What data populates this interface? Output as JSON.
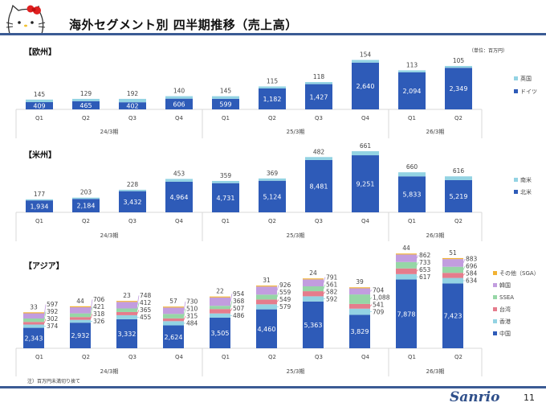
{
  "header": {
    "title": "海外セグメント別 四半期推移（売上高）",
    "logo": "Hello Kitty"
  },
  "unit_label": "（単位：百万円）",
  "note": "注）百万円未満切り捨て",
  "footer": {
    "logo_text": "Sanrio",
    "page_number": "11"
  },
  "colors": {
    "china_blue": "#2e5bb8",
    "light_cyan": "#93d3e3",
    "taiwan": "#e57c8c",
    "ssea": "#96d6a6",
    "korea": "#c29ddf",
    "sga": "#f2b233",
    "rule": "#3b5b94"
  },
  "chart_data": [
    {
      "type": "bar",
      "stacked": true,
      "title": "【欧州】",
      "categories": [
        "Q1",
        "Q2",
        "Q3",
        "Q4",
        "Q1",
        "Q2",
        "Q3",
        "Q4",
        "Q1",
        "Q2"
      ],
      "groups": [
        {
          "label": "24/3期",
          "count": 4
        },
        {
          "label": "25/3期",
          "count": 4
        },
        {
          "label": "26/3期",
          "count": 2
        }
      ],
      "series": [
        {
          "name": "ドイツ",
          "color": "#2e5bb8",
          "values": [
            409,
            465,
            402,
            606,
            599,
            1182,
            1427,
            2640,
            2094,
            2349
          ]
        },
        {
          "name": "英国",
          "color": "#93d3e3",
          "values": [
            145,
            129,
            192,
            140,
            145,
            115,
            118,
            154,
            113,
            105
          ]
        }
      ],
      "legend": "right"
    },
    {
      "type": "bar",
      "stacked": true,
      "title": "【米州】",
      "categories": [
        "Q1",
        "Q2",
        "Q3",
        "Q4",
        "Q1",
        "Q2",
        "Q3",
        "Q4",
        "Q1",
        "Q2"
      ],
      "groups": [
        {
          "label": "24/3期",
          "count": 4
        },
        {
          "label": "25/3期",
          "count": 4
        },
        {
          "label": "26/3期",
          "count": 2
        }
      ],
      "series": [
        {
          "name": "北米",
          "color": "#2e5bb8",
          "values": [
            1934,
            2184,
            3432,
            4964,
            4731,
            5124,
            8481,
            9251,
            5833,
            5219
          ]
        },
        {
          "name": "南米",
          "color": "#93d3e3",
          "values": [
            177,
            203,
            228,
            453,
            359,
            369,
            482,
            661,
            660,
            616
          ]
        }
      ],
      "legend": "right"
    },
    {
      "type": "bar",
      "stacked": true,
      "title": "【アジア】",
      "categories": [
        "Q1",
        "Q2",
        "Q3",
        "Q4",
        "Q1",
        "Q2",
        "Q3",
        "Q4",
        "Q1",
        "Q2"
      ],
      "groups": [
        {
          "label": "24/3期",
          "count": 4
        },
        {
          "label": "25/3期",
          "count": 4
        },
        {
          "label": "26/3期",
          "count": 2
        }
      ],
      "series": [
        {
          "name": "中国",
          "color": "#2e5bb8",
          "values": [
            2343,
            2932,
            3332,
            2624,
            3505,
            4460,
            5363,
            3829,
            7878,
            7423
          ]
        },
        {
          "name": "香港",
          "color": "#93d3e3",
          "values": [
            374,
            326,
            455,
            484,
            486,
            579,
            592,
            709,
            617,
            634
          ]
        },
        {
          "name": "台湾",
          "color": "#e57c8c",
          "values": [
            302,
            318,
            365,
            315,
            507,
            549,
            582,
            541,
            653,
            584
          ]
        },
        {
          "name": "SSEA",
          "color": "#96d6a6",
          "values": [
            392,
            421,
            412,
            510,
            368,
            559,
            561,
            1088,
            733,
            696
          ]
        },
        {
          "name": "韓国",
          "color": "#c29ddf",
          "values": [
            597,
            706,
            748,
            730,
            954,
            926,
            791,
            704,
            862,
            883
          ]
        },
        {
          "name": "その他（SGA）",
          "color": "#f2b233",
          "values": [
            33,
            44,
            23,
            57,
            22,
            31,
            24,
            39,
            44,
            51
          ]
        }
      ],
      "legend": "right"
    }
  ]
}
